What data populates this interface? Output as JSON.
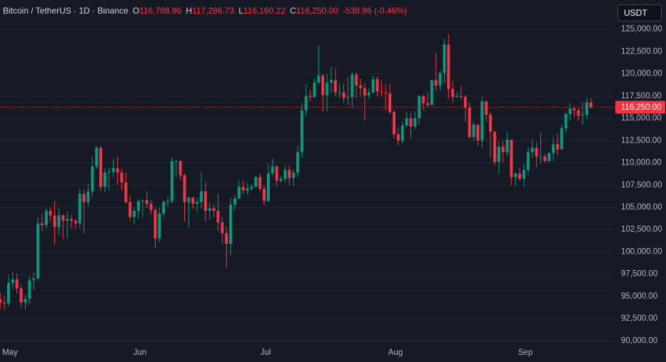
{
  "chart_data": {
    "type": "candlestick",
    "header": {
      "symbol": "Bitcoin / TetherUS · 1D · Binance",
      "open_label": "O",
      "open": "116,788.96",
      "high_label": "H",
      "high": "117,286.73",
      "low_label": "L",
      "low": "116,160.22",
      "close_label": "C",
      "close": "116,250.00",
      "change": "-538.96 (-0.46%)"
    },
    "currency": "USDT",
    "up_color": "#089981",
    "down_color": "#f23645",
    "price_line": {
      "value": 116250,
      "label": "116,250.00",
      "color": "#f23645"
    },
    "grid": true,
    "ylim": [
      89700,
      128300
    ],
    "yticks": [
      {
        "value": 90000,
        "label": "90,000.00"
      },
      {
        "value": 92500,
        "label": "92,500.00"
      },
      {
        "value": 95000,
        "label": "95,000.00"
      },
      {
        "value": 97500,
        "label": "97,500.00"
      },
      {
        "value": 100000,
        "label": "100,000.00"
      },
      {
        "value": 102500,
        "label": "102,500.00"
      },
      {
        "value": 105000,
        "label": "105,000.00"
      },
      {
        "value": 107500,
        "label": "107,500.00"
      },
      {
        "value": 110000,
        "label": "110,000.00"
      },
      {
        "value": 112500,
        "label": "112,500.00"
      },
      {
        "value": 115000,
        "label": "115,000.00"
      },
      {
        "value": 117500,
        "label": "117,500.00"
      },
      {
        "value": 120000,
        "label": "120,000.00"
      },
      {
        "value": 122500,
        "label": "122,500.00"
      },
      {
        "value": 125000,
        "label": "125,000.00"
      }
    ],
    "categories": [
      null,
      null,
      "May",
      null,
      null,
      null,
      null,
      null,
      null,
      null,
      null,
      null,
      null,
      null,
      null,
      null,
      null,
      null,
      null,
      null,
      null,
      null,
      null,
      null,
      null,
      null,
      null,
      null,
      null,
      null,
      null,
      null,
      null,
      "Jun",
      null,
      null,
      null,
      null,
      null,
      null,
      null,
      null,
      null,
      null,
      null,
      null,
      null,
      null,
      null,
      null,
      null,
      null,
      null,
      null,
      null,
      null,
      null,
      null,
      null,
      null,
      null,
      null,
      null,
      "Jul",
      null,
      null,
      null,
      null,
      null,
      null,
      null,
      null,
      null,
      null,
      null,
      null,
      null,
      null,
      null,
      null,
      null,
      null,
      null,
      null,
      null,
      null,
      null,
      null,
      null,
      null,
      null,
      null,
      null,
      null,
      "Aug",
      null,
      null,
      null,
      null,
      null,
      null,
      null,
      null,
      null,
      null,
      null,
      null,
      null,
      null,
      null,
      null,
      null,
      null,
      null,
      null,
      null,
      null,
      null,
      null,
      null,
      null,
      null,
      null,
      null,
      null,
      "Sep",
      null,
      null,
      null,
      null,
      null,
      null,
      null,
      null,
      null,
      null,
      null,
      null,
      null,
      null,
      null,
      null
    ],
    "open": [
      94700,
      94300,
      94200,
      96500,
      96900,
      95900,
      94300,
      94700,
      96800,
      97000,
      103200,
      103000,
      104600,
      104100,
      102800,
      104100,
      103500,
      103700,
      103500,
      103200,
      106500,
      105600,
      106800,
      109600,
      111700,
      107300,
      108900,
      109000,
      109400,
      108900,
      107800,
      105600,
      103900,
      104600,
      105700,
      105800,
      105400,
      104700,
      101500,
      104300,
      105600,
      105700,
      110200,
      110200,
      108600,
      105600,
      106100,
      105400,
      105600,
      106800,
      104600,
      104900,
      104600,
      103300,
      102100,
      100900,
      105300,
      106000,
      107300,
      106900,
      107100,
      107300,
      108400,
      107100,
      105700,
      108800,
      109600,
      108000,
      108200,
      109200,
      108300,
      108900,
      111200,
      115900,
      117500,
      117400,
      119000,
      119800,
      117600,
      119000,
      119300,
      117900,
      117900,
      117300,
      117400,
      119900,
      118700,
      118400,
      117600,
      117900,
      119400,
      118000,
      117900,
      117800,
      115700,
      113200,
      112500,
      114200,
      115000,
      114100,
      115000,
      117500,
      116700,
      116500,
      119300,
      118700,
      120100,
      123300,
      118300,
      117400,
      117500,
      117400,
      116200,
      112900,
      114300,
      112500,
      116900,
      115400,
      113500,
      110100,
      111800,
      111200,
      112600,
      108400,
      108800,
      108200,
      109200,
      111200,
      111700,
      110700,
      110700,
      110200,
      111100,
      112100,
      111500,
      113900,
      115500,
      116100,
      115900,
      115300,
      115400,
      116788.96
    ],
    "high": [
      95400,
      95000,
      97400,
      97800,
      97600,
      96300,
      95200,
      97300,
      97700,
      103900,
      104300,
      104900,
      105000,
      105700,
      104900,
      104200,
      104500,
      104200,
      103700,
      107100,
      107000,
      107700,
      110700,
      111900,
      111900,
      109400,
      109500,
      110400,
      110700,
      109300,
      108900,
      106300,
      105000,
      105900,
      105900,
      106800,
      105900,
      105000,
      105000,
      105800,
      106200,
      110600,
      110400,
      110300,
      108800,
      106200,
      106200,
      106100,
      108900,
      107800,
      105600,
      105300,
      106500,
      103900,
      102800,
      106100,
      106300,
      108100,
      108000,
      107700,
      107600,
      108500,
      108800,
      107500,
      109800,
      110500,
      109700,
      108500,
      109700,
      109700,
      109200,
      111900,
      116800,
      118800,
      118200,
      119500,
      123200,
      120000,
      120000,
      120800,
      120600,
      118900,
      118900,
      119700,
      120200,
      120100,
      119500,
      119000,
      118400,
      119800,
      119700,
      119200,
      118800,
      118900,
      116000,
      114000,
      114700,
      115700,
      115600,
      115800,
      117600,
      117700,
      117900,
      119300,
      122300,
      120300,
      124000,
      124500,
      119200,
      117900,
      118600,
      117600,
      116800,
      114600,
      114300,
      117400,
      117000,
      115700,
      113600,
      112400,
      112500,
      113500,
      112600,
      108900,
      109500,
      109900,
      111800,
      112700,
      112300,
      113400,
      111000,
      111300,
      112900,
      113300,
      114300,
      115600,
      116700,
      116400,
      116100,
      116800,
      117300,
      117286.73
    ],
    "low": [
      93600,
      93400,
      93900,
      95800,
      95300,
      93700,
      93500,
      94100,
      95700,
      96900,
      102300,
      102700,
      103300,
      100800,
      101900,
      101400,
      101500,
      102600,
      102600,
      102700,
      102000,
      105100,
      106100,
      109300,
      106800,
      106700,
      106900,
      108400,
      107500,
      106900,
      105400,
      103600,
      103100,
      103700,
      103900,
      104900,
      104200,
      100400,
      101100,
      103900,
      105100,
      105400,
      108400,
      108100,
      103400,
      102800,
      104800,
      104500,
      104900,
      103400,
      103600,
      103900,
      102400,
      100900,
      98200,
      99600,
      104700,
      105900,
      106500,
      106400,
      106900,
      107200,
      106800,
      105200,
      105600,
      108500,
      107300,
      107800,
      107800,
      107500,
      107400,
      108400,
      110600,
      115300,
      116900,
      117300,
      118900,
      115700,
      115800,
      117900,
      117500,
      117300,
      116800,
      116500,
      116200,
      117300,
      117400,
      114800,
      117200,
      117800,
      117400,
      117500,
      115900,
      115500,
      112700,
      112000,
      112200,
      114000,
      112700,
      113800,
      114300,
      115900,
      116300,
      116500,
      118100,
      118200,
      118900,
      117200,
      116800,
      117300,
      117100,
      114600,
      112700,
      112400,
      111900,
      111700,
      114600,
      110600,
      109700,
      108700,
      110000,
      110800,
      107500,
      107400,
      108000,
      107300,
      108600,
      110600,
      109500,
      109900,
      110000,
      110000,
      110200,
      110800,
      111500,
      113400,
      114800,
      115200,
      114700,
      114300,
      114900,
      116160.22
    ],
    "close": [
      94300,
      94200,
      96500,
      96900,
      95900,
      94300,
      94700,
      96800,
      97000,
      103200,
      103000,
      104600,
      104100,
      102800,
      104100,
      103500,
      103700,
      103500,
      103200,
      106500,
      105600,
      106800,
      109600,
      111700,
      107300,
      108900,
      109000,
      109400,
      108900,
      107800,
      105600,
      103900,
      104600,
      105700,
      105800,
      105400,
      104700,
      101500,
      104300,
      105600,
      105700,
      110200,
      110200,
      108600,
      105600,
      106100,
      105400,
      105600,
      106800,
      104600,
      104900,
      104600,
      103300,
      102100,
      100900,
      105300,
      106000,
      107300,
      106900,
      107100,
      107300,
      108400,
      107100,
      105700,
      108800,
      109600,
      108000,
      108200,
      109200,
      108300,
      108900,
      111200,
      115900,
      117500,
      117400,
      119000,
      119800,
      117600,
      119000,
      119300,
      117900,
      117900,
      117300,
      117400,
      119900,
      118700,
      118400,
      117600,
      117900,
      119400,
      118000,
      117900,
      117800,
      115700,
      113200,
      112500,
      114200,
      115000,
      114100,
      115000,
      117500,
      116700,
      116500,
      119300,
      118700,
      120100,
      123300,
      118300,
      117400,
      117500,
      117400,
      116200,
      112900,
      114300,
      112500,
      116900,
      115400,
      113500,
      110100,
      111800,
      111200,
      112600,
      108400,
      108800,
      108200,
      109200,
      111200,
      111700,
      110700,
      110700,
      110200,
      111100,
      112100,
      111500,
      113900,
      115500,
      116100,
      115900,
      115300,
      115400,
      116788.96,
      116250
    ]
  }
}
